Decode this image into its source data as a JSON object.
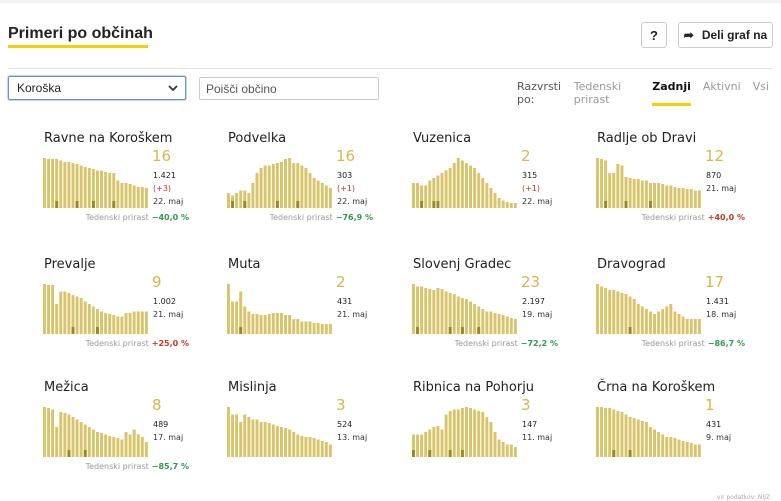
{
  "page": {
    "title": "Primeri po občinah"
  },
  "toolbar": {
    "help_label": "?",
    "share_label": "Deli graf na"
  },
  "filters": {
    "region_selected": "Koroška",
    "search_placeholder": "Poišči občino"
  },
  "sort": {
    "label": "Razvrsti po:",
    "options": [
      "Tedenski prirast",
      "Zadnji",
      "Aktivni",
      "Vsi"
    ],
    "active": "Zadnji"
  },
  "colors": {
    "bar": "#d8c46a",
    "bar_dark": "#9a8a1c",
    "growth_negative": "#2e9a52",
    "growth_positive": "#c0392b",
    "accent": "#f5d000"
  },
  "growth_label": "Tedenski prirast",
  "cells": [
    {
      "name": "Ravne na Koroškem",
      "count": "16",
      "total": "1.421",
      "diff": "(+3)",
      "date": "22. maj",
      "growth": "−40,0 %",
      "growth_sign": "neg"
    },
    {
      "name": "Podvelka",
      "count": "16",
      "total": "303",
      "diff": "(+1)",
      "date": "22. maj",
      "growth": "−76,9 %",
      "growth_sign": "neg"
    },
    {
      "name": "Vuzenica",
      "count": "2",
      "total": "315",
      "diff": "(+1)",
      "date": "22. maj",
      "growth": "",
      "growth_sign": ""
    },
    {
      "name": "Radlje ob Dravi",
      "count": "12",
      "total": "870",
      "diff": "",
      "date": "21. maj",
      "growth": "+40,0 %",
      "growth_sign": "pos"
    },
    {
      "name": "Prevalje",
      "count": "9",
      "total": "1.002",
      "diff": "",
      "date": "21. maj",
      "growth": "+25,0 %",
      "growth_sign": "pos"
    },
    {
      "name": "Muta",
      "count": "2",
      "total": "431",
      "diff": "",
      "date": "21. maj",
      "growth": "",
      "growth_sign": ""
    },
    {
      "name": "Slovenj Gradec",
      "count": "23",
      "total": "2.197",
      "diff": "",
      "date": "19. maj",
      "growth": "−72,2 %",
      "growth_sign": "neg"
    },
    {
      "name": "Dravograd",
      "count": "17",
      "total": "1.431",
      "diff": "",
      "date": "18. maj",
      "growth": "−86,7 %",
      "growth_sign": "neg"
    },
    {
      "name": "Mežica",
      "count": "8",
      "total": "489",
      "diff": "",
      "date": "17. maj",
      "growth": "−85,7 %",
      "growth_sign": "neg"
    },
    {
      "name": "Mislinja",
      "count": "3",
      "total": "524",
      "diff": "",
      "date": "13. maj",
      "growth": "",
      "growth_sign": ""
    },
    {
      "name": "Ribnica na Pohorju",
      "count": "3",
      "total": "147",
      "diff": "",
      "date": "11. maj",
      "growth": "",
      "growth_sign": ""
    },
    {
      "name": "Črna na Koroškem",
      "count": "1",
      "total": "431",
      "diff": "",
      "date": "9. maj",
      "growth": "",
      "growth_sign": ""
    }
  ],
  "source": "vir podatkov: NIJZ",
  "chart_data": [
    {
      "type": "bar",
      "title": "Ravne na Koroškem",
      "values": [
        1.0,
        0.98,
        0.98,
        0.98,
        0.95,
        0.92,
        0.92,
        0.9,
        0.88,
        0.85,
        0.82,
        0.8,
        0.78,
        0.75,
        0.75,
        0.72,
        0.7,
        0.7,
        0.55,
        0.5,
        0.5,
        0.48,
        0.45,
        0.42,
        0.42,
        0.4
      ],
      "highlight": [
        0,
        0,
        0,
        1,
        0,
        0,
        0,
        0,
        1,
        0,
        0,
        0,
        1,
        0,
        0,
        0,
        0,
        1,
        0,
        0,
        0,
        0,
        0,
        0,
        0,
        0
      ]
    },
    {
      "type": "bar",
      "title": "Podvelka",
      "values": [
        0.3,
        0.25,
        0.3,
        0.35,
        0.35,
        0.3,
        0.5,
        0.7,
        0.8,
        0.85,
        0.85,
        0.88,
        0.9,
        0.92,
        0.98,
        1.0,
        0.9,
        0.9,
        0.85,
        0.8,
        0.7,
        0.6,
        0.55,
        0.5,
        0.45,
        0.4
      ],
      "highlight": [
        0,
        1,
        0,
        0,
        1,
        0,
        0,
        0,
        0,
        0,
        0,
        0,
        1,
        0,
        0,
        0,
        0,
        1,
        0,
        0,
        0,
        0,
        0,
        0,
        0,
        0
      ]
    },
    {
      "type": "bar",
      "title": "Vuzenica",
      "values": [
        0.5,
        0.5,
        0.45,
        0.45,
        0.55,
        0.6,
        0.65,
        0.7,
        0.75,
        0.8,
        0.9,
        1.0,
        0.95,
        0.9,
        0.85,
        0.8,
        0.7,
        0.6,
        0.5,
        0.4,
        0.3,
        0.2,
        0.15,
        0.12,
        0.1,
        0.1
      ],
      "highlight": [
        0,
        0,
        1,
        0,
        0,
        1,
        1,
        0,
        0,
        0,
        0,
        0,
        0,
        0,
        0,
        0,
        0,
        0,
        0,
        0,
        0,
        0,
        0,
        0,
        0,
        0
      ]
    },
    {
      "type": "bar",
      "title": "Radlje ob Dravi",
      "values": [
        1.0,
        0.98,
        0.95,
        0.7,
        0.7,
        0.88,
        0.85,
        0.62,
        0.6,
        0.58,
        0.58,
        0.55,
        0.55,
        0.5,
        0.5,
        0.5,
        0.48,
        0.45,
        0.45,
        0.42,
        0.4,
        0.4,
        0.38,
        0.38,
        0.35,
        0.35
      ],
      "highlight": [
        0,
        0,
        1,
        0,
        0,
        0,
        0,
        1,
        0,
        0,
        0,
        0,
        0,
        1,
        0,
        0,
        0,
        0,
        0,
        0,
        0,
        0,
        0,
        0,
        0,
        0
      ]
    },
    {
      "type": "bar",
      "title": "Prevalje",
      "values": [
        1.0,
        0.98,
        0.98,
        0.6,
        0.85,
        0.85,
        0.82,
        0.78,
        0.75,
        0.72,
        0.65,
        0.6,
        0.55,
        0.5,
        0.45,
        0.42,
        0.4,
        0.38,
        0.35,
        0.35,
        0.42,
        0.42,
        0.45,
        0.45,
        0.45,
        0.45
      ],
      "highlight": [
        0,
        0,
        0,
        0,
        0,
        0,
        0,
        1,
        0,
        0,
        0,
        0,
        0,
        1,
        0,
        0,
        0,
        0,
        0,
        0,
        0,
        0,
        0,
        0,
        0,
        0
      ]
    },
    {
      "type": "bar",
      "title": "Muta",
      "values": [
        1.0,
        0.65,
        0.65,
        0.85,
        0.55,
        0.45,
        0.4,
        0.4,
        0.38,
        0.38,
        0.4,
        0.42,
        0.42,
        0.42,
        0.38,
        0.38,
        0.3,
        0.3,
        0.25,
        0.25,
        0.25,
        0.22,
        0.22,
        0.2,
        0.2,
        0.2
      ],
      "highlight": [
        0,
        0,
        0,
        1,
        0,
        0,
        0,
        0,
        0,
        0,
        0,
        0,
        0,
        0,
        0,
        0,
        0,
        0,
        0,
        0,
        0,
        0,
        0,
        0,
        0,
        0
      ]
    },
    {
      "type": "bar",
      "title": "Slovenj Gradec",
      "values": [
        1.0,
        0.95,
        0.95,
        0.92,
        0.9,
        0.88,
        0.92,
        0.9,
        0.85,
        0.82,
        0.8,
        0.75,
        0.72,
        0.7,
        0.65,
        0.6,
        0.55,
        0.5,
        0.45,
        0.45,
        0.42,
        0.4,
        0.38,
        0.35,
        0.32,
        0.3
      ],
      "highlight": [
        0,
        1,
        0,
        0,
        0,
        0,
        0,
        0,
        0,
        1,
        0,
        0,
        1,
        0,
        0,
        0,
        1,
        0,
        0,
        0,
        0,
        0,
        0,
        0,
        0,
        0
      ]
    },
    {
      "type": "bar",
      "title": "Dravograd",
      "values": [
        1.0,
        0.95,
        0.92,
        0.88,
        0.88,
        0.85,
        0.82,
        0.8,
        0.75,
        0.7,
        0.6,
        0.55,
        0.5,
        0.45,
        0.4,
        0.45,
        0.5,
        0.55,
        0.6,
        0.45,
        0.4,
        0.35,
        0.3,
        0.3,
        0.3,
        0.3
      ],
      "highlight": [
        0,
        0,
        0,
        0,
        0,
        0,
        0,
        0,
        1,
        0,
        0,
        0,
        0,
        0,
        0,
        0,
        0,
        0,
        0,
        0,
        0,
        0,
        0,
        0,
        0,
        0
      ]
    },
    {
      "type": "bar",
      "title": "Mežica",
      "values": [
        1.0,
        0.98,
        0.95,
        0.6,
        0.9,
        0.88,
        0.85,
        0.8,
        0.75,
        0.7,
        0.65,
        0.6,
        0.55,
        0.5,
        0.48,
        0.45,
        0.42,
        0.4,
        0.38,
        0.35,
        0.5,
        0.45,
        0.55,
        0.45,
        0.4,
        0.3
      ],
      "highlight": [
        0,
        0,
        0,
        0,
        0,
        0,
        1,
        0,
        0,
        0,
        1,
        0,
        0,
        0,
        0,
        0,
        0,
        0,
        0,
        0,
        0,
        0,
        0,
        0,
        0,
        0
      ]
    },
    {
      "type": "bar",
      "title": "Mislinja",
      "values": [
        1.0,
        0.85,
        0.85,
        0.7,
        0.85,
        0.8,
        0.75,
        0.75,
        0.7,
        0.7,
        0.68,
        0.65,
        0.62,
        0.6,
        0.58,
        0.55,
        0.5,
        0.45,
        0.42,
        0.4,
        0.4,
        0.38,
        0.35,
        0.32,
        0.3,
        0.25
      ],
      "highlight": [
        0,
        0,
        0,
        0,
        0,
        0,
        0,
        0,
        0,
        0,
        0,
        0,
        0,
        0,
        0,
        0,
        0,
        0,
        0,
        0,
        0,
        0,
        0,
        0,
        0,
        0
      ]
    },
    {
      "type": "bar",
      "title": "Ribnica na Pohorju",
      "values": [
        0.45,
        0.45,
        0.45,
        0.5,
        0.55,
        0.6,
        0.62,
        0.55,
        0.85,
        0.92,
        0.95,
        0.95,
        0.98,
        1.0,
        0.98,
        0.95,
        0.92,
        0.9,
        0.8,
        0.7,
        0.5,
        0.35,
        0.3,
        0.25,
        0.25,
        0.2
      ],
      "highlight": [
        1,
        0,
        0,
        0,
        1,
        0,
        0,
        0,
        0,
        1,
        0,
        0,
        1,
        0,
        0,
        0,
        0,
        0,
        0,
        0,
        0,
        0,
        0,
        0,
        0,
        0
      ]
    },
    {
      "type": "bar",
      "title": "Črna na Koroškem",
      "values": [
        1.0,
        1.0,
        0.98,
        0.98,
        0.95,
        0.92,
        0.9,
        0.85,
        0.8,
        0.78,
        0.75,
        0.72,
        0.7,
        0.6,
        0.55,
        0.5,
        0.45,
        0.4,
        0.4,
        0.38,
        0.35,
        0.32,
        0.3,
        0.28,
        0.25,
        0.25
      ],
      "highlight": [
        0,
        0,
        0,
        0,
        1,
        0,
        0,
        0,
        1,
        0,
        0,
        0,
        0,
        0,
        0,
        0,
        0,
        0,
        0,
        0,
        0,
        0,
        0,
        0,
        0,
        0
      ]
    }
  ]
}
